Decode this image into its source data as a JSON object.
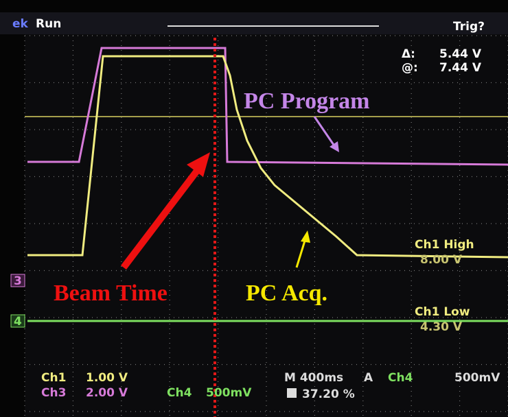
{
  "header": {
    "brand": "ek",
    "status": "Run",
    "trigger": "Trig?"
  },
  "cursor": {
    "delta_symbol": "Δ:",
    "delta_value": "5.44 V",
    "at_symbol": "@:",
    "at_value": "7.44 V"
  },
  "annotations": {
    "pc_program": "PC Program",
    "beam_time": "Beam Time",
    "pc_acq": "PC Acq."
  },
  "markers": {
    "ch3": "3",
    "ch4": "4"
  },
  "levels": {
    "high_label": "Ch1 High",
    "high_value": "8.00 V",
    "low_label": "Ch1 Low",
    "low_value": "4.30 V"
  },
  "footer": {
    "ch1": "Ch1",
    "ch1_scale": "1.00 V",
    "ch3": "Ch3",
    "ch3_scale": "2.00 V",
    "ch4": "Ch4",
    "ch4_scale": "500mV",
    "timebase": "M 400ms",
    "mode": "A",
    "trig_source": "Ch4",
    "trig_level": "500mV",
    "position": "37.20 %"
  }
}
